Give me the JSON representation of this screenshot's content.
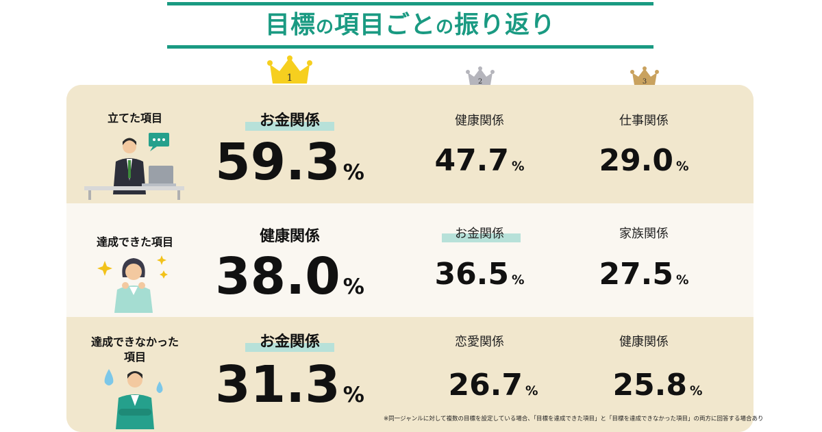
{
  "title": {
    "main_a": "目標",
    "no1": "の",
    "main_b": "項目ごと",
    "no2": "の",
    "main_c": "振り返り"
  },
  "ranks": {
    "first": "1",
    "second": "2",
    "third": "3"
  },
  "rows": [
    {
      "label_lines": [
        "立てた項目"
      ],
      "first": {
        "category": "お金関係",
        "value": "59.3",
        "unit": "%"
      },
      "second": {
        "category": "健康関係",
        "value": "47.7",
        "unit": "%"
      },
      "third": {
        "category": "仕事関係",
        "value": "29.0",
        "unit": "%"
      }
    },
    {
      "label_lines": [
        "達成できた項目"
      ],
      "first": {
        "category": "健康関係",
        "value": "38.0",
        "unit": "%"
      },
      "second": {
        "category": "お金関係",
        "value": "36.5",
        "unit": "%"
      },
      "third": {
        "category": "家族関係",
        "value": "27.5",
        "unit": "%"
      }
    },
    {
      "label_lines": [
        "達成できなかった",
        "項目"
      ],
      "first": {
        "category": "お金関係",
        "value": "31.3",
        "unit": "%"
      },
      "second": {
        "category": "恋愛関係",
        "value": "26.7",
        "unit": "%"
      },
      "third": {
        "category": "健康関係",
        "value": "25.8",
        "unit": "%"
      }
    }
  ],
  "footnote": "※同一ジャンルに対して複数の目標を設定している場合、「目標を達成できた項目」と「目標を達成できなかった項目」の両方に回答する場合あり",
  "colors": {
    "accent": "#1a9a82",
    "panel": "#f1e7cd",
    "panel_light": "#faf7f1",
    "highlight": "#b7e1d9",
    "gold": "#f6cf1f",
    "silver": "#b5b5bc",
    "bronze": "#c9a25f"
  }
}
